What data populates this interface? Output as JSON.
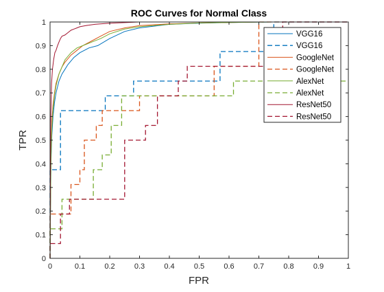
{
  "chart_data": {
    "type": "line",
    "title": "ROC Curves for Normal Class",
    "xlabel": "FPR",
    "ylabel": "TPR",
    "xlim": [
      0,
      1
    ],
    "ylim": [
      0,
      1
    ],
    "xticks": [
      "0",
      "0.1",
      "0.2",
      "0.3",
      "0.4",
      "0.5",
      "0.6",
      "0.7",
      "0.8",
      "0.9",
      "1"
    ],
    "yticks": [
      "0",
      "0.1",
      "0.2",
      "0.3",
      "0.4",
      "0.5",
      "0.6",
      "0.7",
      "0.8",
      "0.9",
      "1"
    ],
    "grid": false,
    "legend_position": "top-right",
    "series": [
      {
        "name": "VGG16",
        "style": "solid",
        "color": "#0072BD",
        "x": [
          0,
          0.003,
          0.006,
          0.01,
          0.015,
          0.02,
          0.03,
          0.04,
          0.05,
          0.06,
          0.08,
          0.1,
          0.13,
          0.16,
          0.2,
          0.25,
          0.3,
          0.4,
          0.5,
          0.6,
          0.75,
          0.85,
          1
        ],
        "y": [
          0,
          0.4,
          0.52,
          0.6,
          0.66,
          0.7,
          0.75,
          0.78,
          0.8,
          0.82,
          0.85,
          0.87,
          0.89,
          0.9,
          0.93,
          0.96,
          0.975,
          0.99,
          0.995,
          0.998,
          1,
          1,
          1
        ]
      },
      {
        "name": "VGG16",
        "style": "dashed",
        "color": "#0072BD",
        "x": [
          0,
          0,
          0.035,
          0.035,
          0.185,
          0.185,
          0.28,
          0.28,
          0.57,
          0.57,
          0.75,
          0.75,
          1
        ],
        "y": [
          0,
          0.375,
          0.375,
          0.625,
          0.625,
          0.6875,
          0.6875,
          0.75,
          0.75,
          0.875,
          0.875,
          1,
          1
        ]
      },
      {
        "name": "GoogleNet",
        "style": "solid",
        "color": "#D95319",
        "x": [
          0,
          0.003,
          0.006,
          0.01,
          0.015,
          0.02,
          0.03,
          0.04,
          0.05,
          0.07,
          0.09,
          0.11,
          0.14,
          0.17,
          0.2,
          0.25,
          0.3,
          0.4,
          0.5,
          0.6,
          0.7,
          1
        ],
        "y": [
          0,
          0.45,
          0.58,
          0.65,
          0.7,
          0.74,
          0.78,
          0.81,
          0.83,
          0.86,
          0.88,
          0.9,
          0.92,
          0.94,
          0.96,
          0.975,
          0.985,
          0.992,
          0.996,
          0.998,
          1,
          1
        ]
      },
      {
        "name": "GoogleNet",
        "style": "dashed",
        "color": "#D95319",
        "x": [
          0,
          0,
          0.07,
          0.07,
          0.1,
          0.1,
          0.115,
          0.115,
          0.155,
          0.155,
          0.175,
          0.175,
          0.3,
          0.3,
          0.55,
          0.55,
          0.7,
          0.7,
          1
        ],
        "y": [
          0,
          0.1875,
          0.1875,
          0.3125,
          0.3125,
          0.375,
          0.375,
          0.5,
          0.5,
          0.5625,
          0.5625,
          0.625,
          0.625,
          0.6875,
          0.6875,
          0.8125,
          0.8125,
          1,
          1
        ]
      },
      {
        "name": "AlexNet",
        "style": "solid",
        "color": "#77AC30",
        "x": [
          0,
          0.003,
          0.006,
          0.01,
          0.015,
          0.02,
          0.03,
          0.04,
          0.05,
          0.07,
          0.09,
          0.11,
          0.14,
          0.17,
          0.2,
          0.25,
          0.3,
          0.4,
          0.5,
          0.6,
          0.75,
          1
        ],
        "y": [
          0,
          0.42,
          0.55,
          0.63,
          0.69,
          0.73,
          0.78,
          0.81,
          0.84,
          0.87,
          0.89,
          0.9,
          0.915,
          0.93,
          0.95,
          0.97,
          0.98,
          0.99,
          0.996,
          0.998,
          1,
          1
        ]
      },
      {
        "name": "AlexNet",
        "style": "dashed",
        "color": "#77AC30",
        "x": [
          0,
          0,
          0.04,
          0.04,
          0.085,
          0.085,
          0.145,
          0.145,
          0.175,
          0.175,
          0.205,
          0.205,
          0.24,
          0.24,
          0.615,
          0.615,
          1
        ],
        "y": [
          0,
          0.125,
          0.125,
          0.25,
          0.25,
          0.25,
          0.25,
          0.375,
          0.375,
          0.4375,
          0.4375,
          0.5625,
          0.5625,
          0.6875,
          0.6875,
          0.75,
          0.75
        ]
      },
      {
        "name": "ResNet50",
        "style": "solid",
        "color": "#A2142F",
        "x": [
          0,
          0.002,
          0.005,
          0.008,
          0.012,
          0.016,
          0.02,
          0.025,
          0.03,
          0.035,
          0.04,
          0.05,
          0.06,
          0.07,
          0.08,
          0.09,
          0.1,
          0.12,
          0.15,
          0.2,
          0.3,
          0.4,
          0.5,
          0.6,
          1
        ],
        "y": [
          0,
          0.57,
          0.74,
          0.8,
          0.84,
          0.87,
          0.88,
          0.9,
          0.915,
          0.93,
          0.94,
          0.945,
          0.955,
          0.965,
          0.97,
          0.975,
          0.98,
          0.985,
          0.99,
          0.995,
          1,
          1,
          1,
          1,
          1
        ]
      },
      {
        "name": "ResNet50",
        "style": "dashed",
        "color": "#A2142F",
        "x": [
          0,
          0,
          0.035,
          0.035,
          0.065,
          0.065,
          0.1,
          0.1,
          0.25,
          0.25,
          0.32,
          0.32,
          0.36,
          0.36,
          0.43,
          0.43,
          0.46,
          0.46,
          0.73,
          0.73,
          0.78,
          0.78,
          1
        ],
        "y": [
          0,
          0.0625,
          0.0625,
          0.1875,
          0.1875,
          0.25,
          0.25,
          0.25,
          0.25,
          0.5,
          0.5,
          0.5625,
          0.5625,
          0.6875,
          0.6875,
          0.75,
          0.75,
          0.8125,
          0.8125,
          0.875,
          0.875,
          1,
          1
        ]
      }
    ]
  }
}
